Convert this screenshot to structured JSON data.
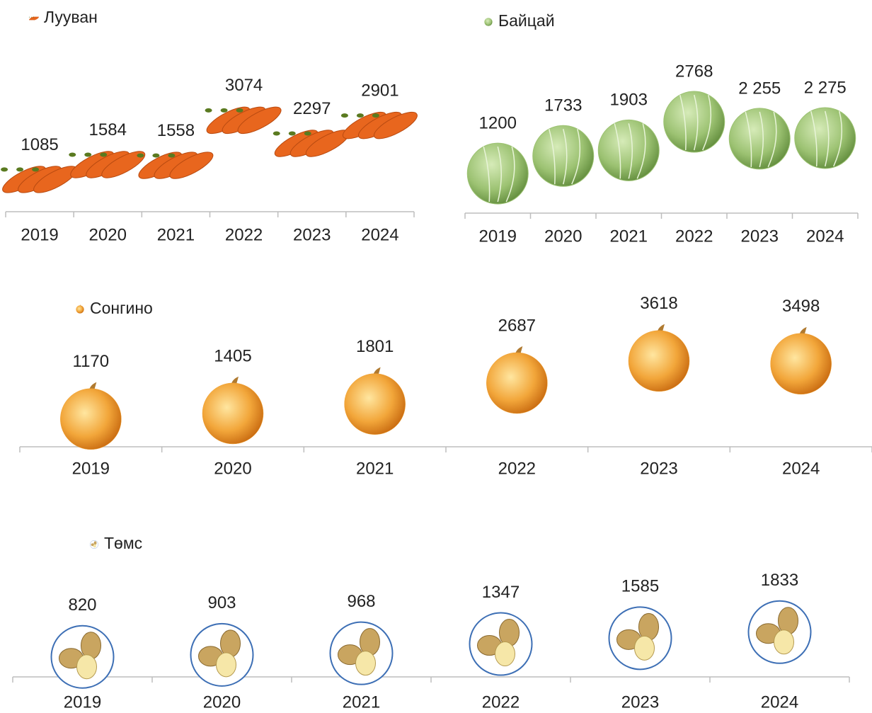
{
  "chart_data": [
    {
      "type": "pictorial",
      "categories": [
        "2019",
        "2020",
        "2021",
        "2022",
        "2023",
        "2024"
      ],
      "series": [
        {
          "name": "Лууван",
          "color": "#e8661e",
          "values": [
            1085,
            1584,
            1558,
            3074,
            2297,
            2901
          ]
        }
      ]
    },
    {
      "type": "pictorial",
      "categories": [
        "2019",
        "2020",
        "2021",
        "2022",
        "2023",
        "2024"
      ],
      "series": [
        {
          "name": "Байцай",
          "color": "#9cc272",
          "values": [
            1200,
            1733,
            1903,
            2768,
            2255,
            2275
          ],
          "value_labels": [
            "1200",
            "1733",
            "1903",
            "2768",
            "2 255",
            "2 275"
          ]
        }
      ]
    },
    {
      "type": "pictorial",
      "categories": [
        "2019",
        "2020",
        "2021",
        "2022",
        "2023",
        "2024"
      ],
      "series": [
        {
          "name": "Сонгино",
          "color": "#f0a030",
          "values": [
            1170,
            1405,
            1801,
            2687,
            3618,
            3498
          ]
        }
      ]
    },
    {
      "type": "pictorial",
      "categories": [
        "2019",
        "2020",
        "2021",
        "2022",
        "2023",
        "2024"
      ],
      "series": [
        {
          "name": "Төмс",
          "color": "#3d6fb5",
          "values": [
            820,
            903,
            968,
            1347,
            1585,
            1833
          ]
        }
      ]
    }
  ]
}
